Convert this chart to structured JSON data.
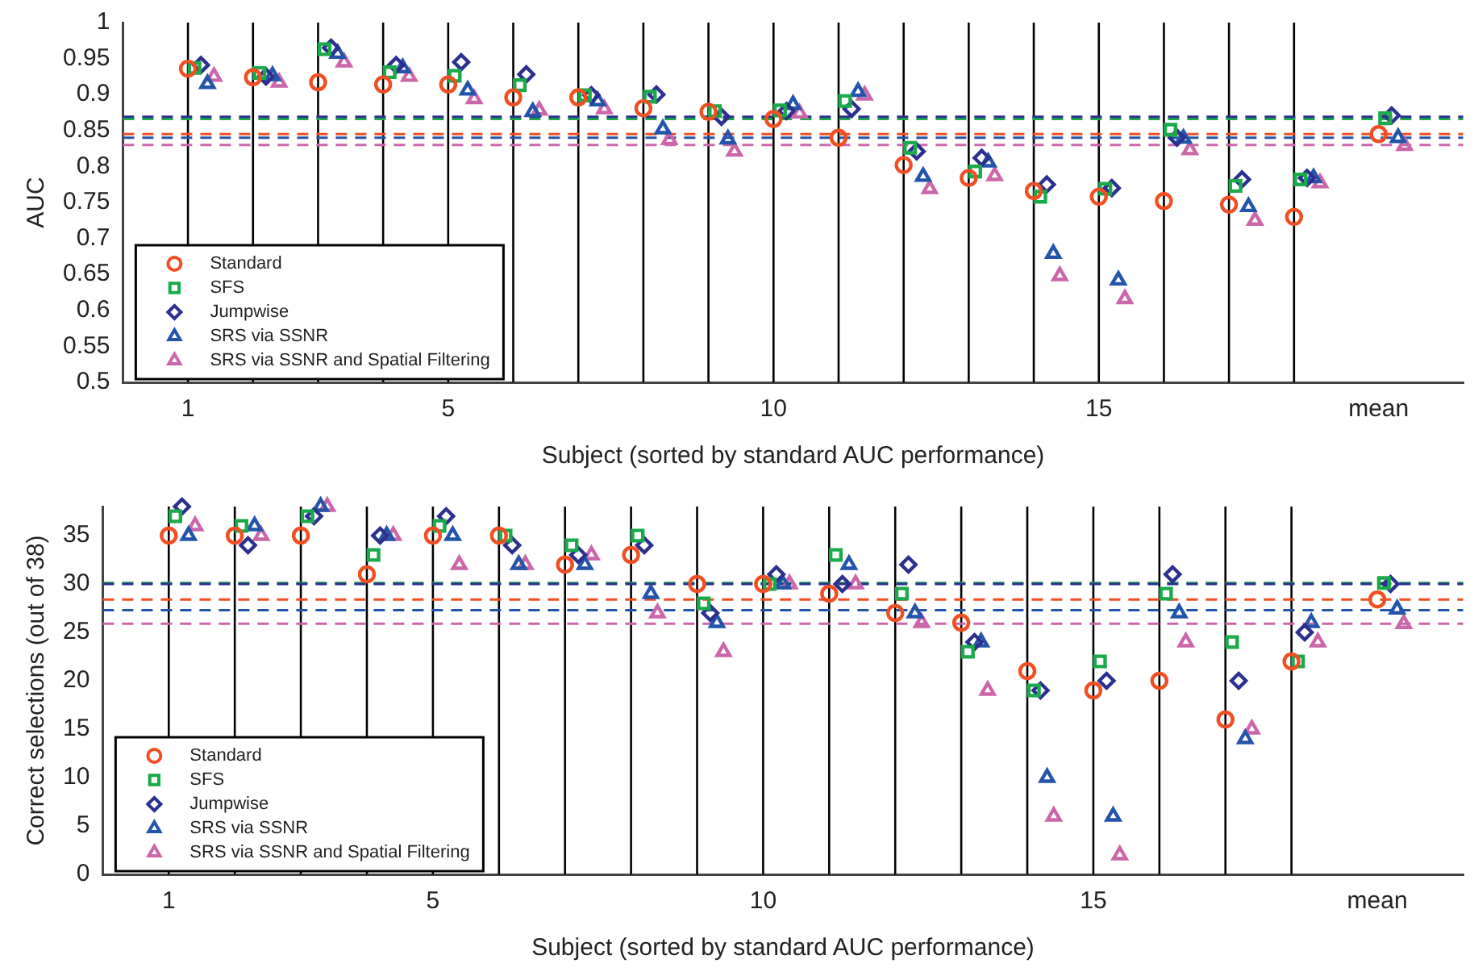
{
  "chart_data": [
    {
      "type": "scatter",
      "ylabel": "AUC",
      "xlabel": "Subject (sorted by standard AUC performance)",
      "xlim": [
        0,
        20.6
      ],
      "ylim": [
        0.5,
        1
      ],
      "xticks": [
        1,
        5,
        10,
        15,
        {
          "value": 19.3,
          "label": "mean"
        }
      ],
      "yticks": [
        0.5,
        0.55,
        0.6,
        0.65,
        0.7,
        0.75,
        0.8,
        0.85,
        0.9,
        0.95,
        1
      ],
      "grid": false,
      "legend": "bottom left",
      "series": [
        {
          "name": "Standard",
          "color": "#f04e23",
          "marker": "circle",
          "x": [
            1,
            2,
            3,
            4,
            5,
            6,
            7,
            8,
            9,
            10,
            11,
            12,
            13,
            14,
            15,
            16,
            17,
            18,
            19.3
          ],
          "values": [
            0.936,
            0.924,
            0.917,
            0.914,
            0.914,
            0.896,
            0.896,
            0.881,
            0.876,
            0.866,
            0.84,
            0.802,
            0.784,
            0.766,
            0.758,
            0.752,
            0.747,
            0.73,
            0.845
          ]
        },
        {
          "name": "SFS",
          "color": "#1aaa4a",
          "marker": "square",
          "x": [
            1.1,
            2.1,
            3.1,
            4.1,
            5.1,
            6.1,
            7.1,
            8.1,
            9.1,
            10.1,
            11.1,
            12.1,
            13.1,
            14.1,
            15.1,
            16.1,
            17.1,
            18.1,
            19.4
          ],
          "values": [
            0.937,
            0.93,
            0.963,
            0.931,
            0.926,
            0.913,
            0.899,
            0.897,
            0.877,
            0.878,
            0.891,
            0.826,
            0.793,
            0.758,
            0.769,
            0.851,
            0.773,
            0.782,
            0.867
          ]
        },
        {
          "name": "Jumpwise",
          "color": "#2b2f8f",
          "marker": "diamond",
          "x": [
            1.2,
            2.2,
            3.2,
            4.2,
            5.2,
            6.2,
            7.2,
            8.2,
            9.2,
            10.2,
            11.2,
            12.2,
            13.2,
            14.2,
            15.2,
            16.2,
            17.2,
            18.2,
            19.5
          ],
          "values": [
            0.941,
            0.925,
            0.965,
            0.941,
            0.945,
            0.928,
            0.899,
            0.9,
            0.869,
            0.877,
            0.88,
            0.821,
            0.812,
            0.775,
            0.77,
            0.84,
            0.782,
            0.784,
            0.871
          ]
        },
        {
          "name": "SRS via SSNR",
          "color": "#2255aa",
          "marker": "triangle",
          "x": [
            1.3,
            2.3,
            3.3,
            4.3,
            5.3,
            6.3,
            7.3,
            8.3,
            9.3,
            10.3,
            11.3,
            12.3,
            13.3,
            14.3,
            15.3,
            16.3,
            17.3,
            18.3,
            19.6
          ],
          "values": [
            0.915,
            0.926,
            0.957,
            0.937,
            0.906,
            0.876,
            0.891,
            0.852,
            0.838,
            0.886,
            0.904,
            0.786,
            0.806,
            0.679,
            0.642,
            0.839,
            0.744,
            0.784,
            0.84
          ]
        },
        {
          "name": "SRS via SSNR and Spatial Filtering",
          "color": "#cc66aa",
          "marker": "triangle",
          "x": [
            1.4,
            2.4,
            3.4,
            4.4,
            5.4,
            6.4,
            7.4,
            8.4,
            9.4,
            10.4,
            11.4,
            12.4,
            13.4,
            14.4,
            15.4,
            16.4,
            17.4,
            18.4,
            19.7
          ],
          "values": [
            0.925,
            0.917,
            0.945,
            0.925,
            0.894,
            0.878,
            0.88,
            0.837,
            0.821,
            0.874,
            0.899,
            0.769,
            0.787,
            0.648,
            0.616,
            0.823,
            0.725,
            0.777,
            0.829
          ]
        }
      ],
      "ref_lines": [
        {
          "axis": "x",
          "value": 1,
          "color": "#000000"
        },
        {
          "axis": "x",
          "value": 2,
          "color": "#000000"
        },
        {
          "axis": "x",
          "value": 3,
          "color": "#000000"
        },
        {
          "axis": "x",
          "value": 4,
          "color": "#000000"
        },
        {
          "axis": "x",
          "value": 5,
          "color": "#000000"
        },
        {
          "axis": "x",
          "value": 6,
          "color": "#000000"
        },
        {
          "axis": "x",
          "value": 7,
          "color": "#000000"
        },
        {
          "axis": "x",
          "value": 8,
          "color": "#000000"
        },
        {
          "axis": "x",
          "value": 9,
          "color": "#000000"
        },
        {
          "axis": "x",
          "value": 10,
          "color": "#000000"
        },
        {
          "axis": "x",
          "value": 11,
          "color": "#000000"
        },
        {
          "axis": "x",
          "value": 12,
          "color": "#000000"
        },
        {
          "axis": "x",
          "value": 13,
          "color": "#000000"
        },
        {
          "axis": "x",
          "value": 14,
          "color": "#000000"
        },
        {
          "axis": "x",
          "value": 15,
          "color": "#000000"
        },
        {
          "axis": "x",
          "value": 16,
          "color": "#000000"
        },
        {
          "axis": "x",
          "value": 17,
          "color": "#000000"
        },
        {
          "axis": "x",
          "value": 18,
          "color": "#000000"
        },
        {
          "axis": "y",
          "value": 0.866,
          "color": "#1aaa4a",
          "line_style": "dashed"
        },
        {
          "axis": "y",
          "value": 0.869,
          "color": "#2b2f8f",
          "line_style": "dashed"
        },
        {
          "axis": "y",
          "value": 0.845,
          "color": "#f04e23",
          "line_style": "dashed"
        },
        {
          "axis": "y",
          "value": 0.84,
          "color": "#2255aa",
          "line_style": "dashed"
        },
        {
          "axis": "y",
          "value": 0.83,
          "color": "#cc66aa",
          "line_style": "dashed"
        }
      ]
    },
    {
      "type": "scatter",
      "ylabel": "Correct selections (out of 38)",
      "xlabel": "Subject (sorted by standard AUC performance)",
      "xlim": [
        0,
        20.6
      ],
      "ylim": [
        0,
        38
      ],
      "xticks": [
        1,
        5,
        10,
        15,
        {
          "value": 19.3,
          "label": "mean"
        }
      ],
      "yticks": [
        0,
        5,
        10,
        15,
        20,
        25,
        30,
        35
      ],
      "grid": false,
      "legend": "bottom left",
      "series": [
        {
          "name": "Standard",
          "color": "#f04e23",
          "marker": "circle",
          "x": [
            1,
            2,
            3,
            4,
            5,
            6,
            7,
            8,
            9,
            10,
            11,
            12,
            13,
            14,
            15,
            16,
            17,
            18,
            19.3
          ],
          "values": [
            35,
            35,
            35,
            31,
            35,
            35,
            32,
            33,
            30,
            30,
            29,
            27,
            26,
            21,
            19,
            20,
            16,
            22,
            28.4
          ]
        },
        {
          "name": "SFS",
          "color": "#1aaa4a",
          "marker": "square",
          "x": [
            1.1,
            2.1,
            3.1,
            4.1,
            5.1,
            6.1,
            7.1,
            8.1,
            9.1,
            10.1,
            11.1,
            12.1,
            13.1,
            14.1,
            15.1,
            16.1,
            17.1,
            18.1,
            19.4
          ],
          "values": [
            37,
            36,
            37,
            33,
            36,
            35,
            34,
            35,
            28,
            30,
            33,
            29,
            23,
            19,
            22,
            29,
            24,
            22,
            30.1
          ]
        },
        {
          "name": "Jumpwise",
          "color": "#2b2f8f",
          "marker": "diamond",
          "x": [
            1.2,
            2.2,
            3.2,
            4.2,
            5.2,
            6.2,
            7.2,
            8.2,
            9.2,
            10.2,
            11.2,
            12.2,
            13.2,
            14.2,
            15.2,
            16.2,
            17.2,
            18.2,
            19.5
          ],
          "values": [
            38,
            34,
            37,
            35,
            37,
            34,
            33,
            34,
            27,
            31,
            30,
            32,
            24,
            19,
            20,
            31,
            20,
            25,
            30.0
          ]
        },
        {
          "name": "SRS via SSNR",
          "color": "#2255aa",
          "marker": "triangle",
          "x": [
            1.3,
            2.3,
            3.3,
            4.3,
            5.3,
            6.3,
            7.3,
            8.3,
            9.3,
            10.3,
            11.3,
            12.3,
            13.3,
            14.3,
            15.3,
            16.3,
            17.3,
            18.3,
            19.6
          ],
          "values": [
            35,
            36,
            38,
            35,
            35,
            32,
            32,
            29,
            26,
            30,
            32,
            27,
            24,
            10,
            6,
            27,
            14,
            26,
            27.4
          ]
        },
        {
          "name": "SRS via SSNR and Spatial Filtering",
          "color": "#cc66aa",
          "marker": "triangle",
          "x": [
            1.4,
            2.4,
            3.4,
            4.4,
            5.4,
            6.4,
            7.4,
            8.4,
            9.4,
            10.4,
            11.4,
            12.4,
            13.4,
            14.4,
            15.4,
            16.4,
            17.4,
            18.4,
            19.7
          ],
          "values": [
            36,
            35,
            38,
            35,
            32,
            32,
            33,
            27,
            23,
            30,
            30,
            26,
            19,
            6,
            2,
            24,
            15,
            24,
            25.9
          ]
        }
      ],
      "ref_lines": [
        {
          "axis": "x",
          "value": 1,
          "color": "#000000"
        },
        {
          "axis": "x",
          "value": 2,
          "color": "#000000"
        },
        {
          "axis": "x",
          "value": 3,
          "color": "#000000"
        },
        {
          "axis": "x",
          "value": 4,
          "color": "#000000"
        },
        {
          "axis": "x",
          "value": 5,
          "color": "#000000"
        },
        {
          "axis": "x",
          "value": 6,
          "color": "#000000"
        },
        {
          "axis": "x",
          "value": 7,
          "color": "#000000"
        },
        {
          "axis": "x",
          "value": 8,
          "color": "#000000"
        },
        {
          "axis": "x",
          "value": 9,
          "color": "#000000"
        },
        {
          "axis": "x",
          "value": 10,
          "color": "#000000"
        },
        {
          "axis": "x",
          "value": 11,
          "color": "#000000"
        },
        {
          "axis": "x",
          "value": 12,
          "color": "#000000"
        },
        {
          "axis": "x",
          "value": 13,
          "color": "#000000"
        },
        {
          "axis": "x",
          "value": 14,
          "color": "#000000"
        },
        {
          "axis": "x",
          "value": 15,
          "color": "#000000"
        },
        {
          "axis": "x",
          "value": 16,
          "color": "#000000"
        },
        {
          "axis": "x",
          "value": 17,
          "color": "#000000"
        },
        {
          "axis": "x",
          "value": 18,
          "color": "#000000"
        },
        {
          "axis": "y",
          "value": 30.1,
          "color": "#1aaa4a",
          "line_style": "dashed"
        },
        {
          "axis": "y",
          "value": 30.0,
          "color": "#2b2f8f",
          "line_style": "dashed"
        },
        {
          "axis": "y",
          "value": 28.4,
          "color": "#f04e23",
          "line_style": "dashed"
        },
        {
          "axis": "y",
          "value": 27.3,
          "color": "#2255aa",
          "line_style": "dashed"
        },
        {
          "axis": "y",
          "value": 25.9,
          "color": "#cc66aa",
          "line_style": "dashed"
        }
      ]
    }
  ]
}
